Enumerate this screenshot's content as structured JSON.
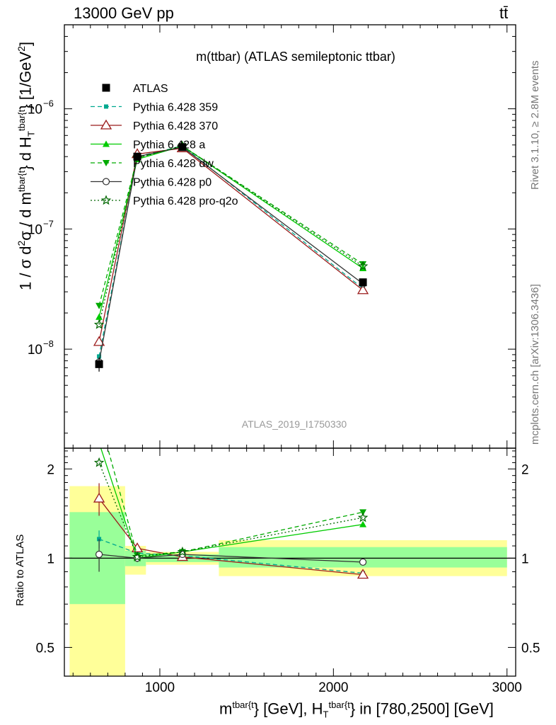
{
  "header": {
    "left": "13000 GeV pp",
    "right": "tt̄"
  },
  "side_labels": {
    "rivet": "Rivet 3.1.10, ≥ 2.8M events",
    "mcplots": "mcplots.cern.ch [arXiv:1306.3436]"
  },
  "colors": {
    "ATLAS": "#000000",
    "359": "#00a88f",
    "370": "#9b1b1b",
    "a": "#00cc00",
    "dw": "#00aa00",
    "p0": "#333333",
    "pro-q2o": "#006600",
    "band_outer": "#ffff99",
    "band_inner": "#99ff99"
  },
  "chart_data": [
    {
      "type": "line",
      "title": "m(ttbar) (ATLAS semileptonic ttbar)",
      "watermark": "ATLAS_2019_I1750330",
      "ylabel": "1 / σ d²σ / d m^{tbar{t}} d H_T^{tbar{t}} [1/GeV²]",
      "yscale": "log",
      "ylim": [
        1.5e-09,
        5e-06
      ],
      "xlim": [
        450,
        3050
      ],
      "y_ticks": [
        {
          "value": 1e-08,
          "mant": "10",
          "exp": "−8"
        },
        {
          "value": 1e-07,
          "mant": "10",
          "exp": "−7"
        },
        {
          "value": 1e-06,
          "mant": "10",
          "exp": "−6"
        }
      ],
      "legend_position": "top-left",
      "x": [
        650,
        870,
        1130,
        2170
      ],
      "series": [
        {
          "name": "ATLAS",
          "key": "ATLAS",
          "values": [
            7.5e-09,
            4e-07,
            4.8e-07,
            3.6e-08
          ],
          "errors": [
            1e-09,
            2e-08,
            2e-08,
            2e-09
          ],
          "marker": "square-filled",
          "dash": "none"
        },
        {
          "name": "Pythia 6.428 359",
          "key": "359",
          "values": [
            8.7e-09,
            4e-07,
            4.9e-07,
            3.2e-08
          ],
          "marker": "square-small",
          "dash": "6,4"
        },
        {
          "name": "Pythia 6.428 370",
          "key": "370",
          "values": [
            1.15e-08,
            4.2e-07,
            4.7e-07,
            3.1e-08
          ],
          "marker": "triangle-open",
          "dash": "none"
        },
        {
          "name": "Pythia 6.428 a",
          "key": "a",
          "values": [
            1.85e-08,
            3.8e-07,
            4.9e-07,
            4.7e-08
          ],
          "marker": "triangle-filled",
          "dash": "none"
        },
        {
          "name": "Pythia 6.428 dw",
          "key": "dw",
          "values": [
            2.3e-08,
            3.9e-07,
            4.9e-07,
            5.1e-08
          ],
          "marker": "triangle-down-filled",
          "dash": "6,4"
        },
        {
          "name": "Pythia 6.428 p0",
          "key": "p0",
          "values": [
            7.8e-09,
            4e-07,
            4.8e-07,
            3.5e-08
          ],
          "marker": "circle-open",
          "dash": "none"
        },
        {
          "name": "Pythia 6.428 pro-q2o",
          "key": "pro-q2o",
          "values": [
            1.6e-08,
            3.9e-07,
            4.9e-07,
            4.9e-08
          ],
          "marker": "star",
          "dash": "2,3"
        }
      ]
    },
    {
      "type": "line",
      "ylabel": "Ratio to ATLAS",
      "xlabel": "m^{tbar{t}} [GeV], H_T^{tbar{t}} in [780,2500] [GeV]",
      "xlim": [
        450,
        3050
      ],
      "ylim": [
        0.4,
        2.35
      ],
      "x_ticks": [
        1000,
        2000,
        3000
      ],
      "x_tick_labels": [
        "1000",
        "2000",
        "3000"
      ],
      "y_ticks": [
        0.5,
        1,
        2
      ],
      "y_tick_labels": [
        "0.5",
        "1",
        "2"
      ],
      "bands": [
        {
          "x_low": 480,
          "x_high": 800,
          "outer": [
            0.35,
            1.75
          ],
          "inner": [
            0.7,
            1.43
          ]
        },
        {
          "x_low": 800,
          "x_high": 920,
          "outer": [
            0.88,
            1.1
          ],
          "inner": [
            0.94,
            1.06
          ]
        },
        {
          "x_low": 920,
          "x_high": 1340,
          "outer": [
            0.95,
            1.05
          ],
          "inner": [
            0.97,
            1.03
          ]
        },
        {
          "x_low": 1340,
          "x_high": 3000,
          "outer": [
            0.87,
            1.15
          ],
          "inner": [
            0.93,
            1.09
          ]
        }
      ],
      "x": [
        650,
        870,
        1130,
        2170
      ],
      "series": [
        {
          "name": "Pythia 6.428 359",
          "key": "359",
          "values": [
            1.16,
            1.04,
            1.02,
            0.89
          ],
          "errors": [
            0.08,
            0.02,
            0.01,
            0.01
          ],
          "marker": "square-small",
          "dash": "6,4"
        },
        {
          "name": "Pythia 6.428 370",
          "key": "370",
          "values": [
            1.59,
            1.08,
            1.01,
            0.88
          ],
          "errors": [
            0.2,
            0.02,
            0.01,
            0.02
          ],
          "marker": "triangle-open",
          "dash": "none"
        },
        {
          "name": "Pythia 6.428 a",
          "key": "a",
          "values": [
            2.45,
            1.0,
            1.05,
            1.3
          ],
          "marker": "triangle-filled",
          "dash": "none"
        },
        {
          "name": "Pythia 6.428 dw",
          "key": "dw",
          "values": [
            3.0,
            1.02,
            1.05,
            1.43
          ],
          "marker": "triangle-down-filled",
          "dash": "6,4"
        },
        {
          "name": "Pythia 6.428 p0",
          "key": "p0",
          "values": [
            1.03,
            1.0,
            1.03,
            0.97
          ],
          "errors": [
            0.13,
            0.03,
            0.01,
            0.01
          ],
          "marker": "circle-open",
          "dash": "none"
        },
        {
          "name": "Pythia 6.428 pro-q2o",
          "key": "pro-q2o",
          "values": [
            2.1,
            1.01,
            1.05,
            1.37
          ],
          "marker": "star",
          "dash": "2,3"
        }
      ]
    }
  ]
}
